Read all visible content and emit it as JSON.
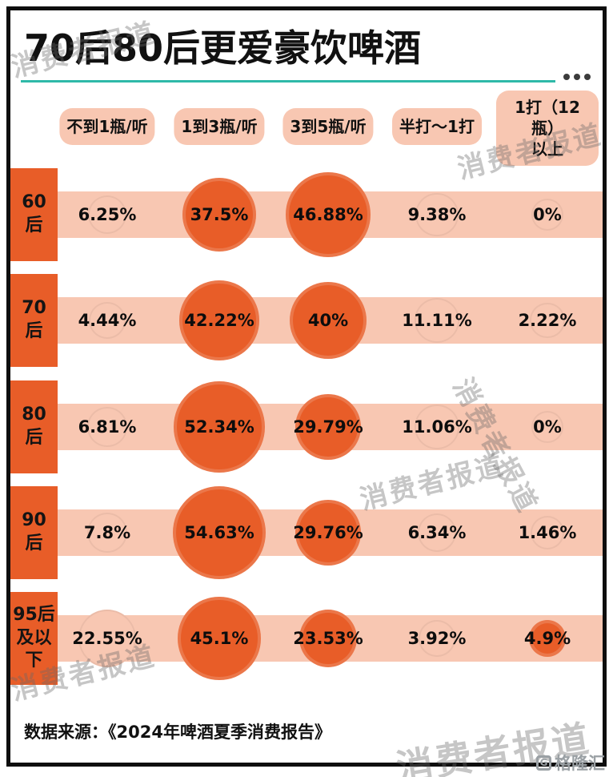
{
  "title": "70后80后更爱豪饮啤酒",
  "watermark": "消费者报道",
  "logo": "格隆汇",
  "logo_icon": "G",
  "source": "数据来源：《2024年啤酒夏季消费报告》",
  "columns": [
    {
      "text": "不到1瓶/听",
      "lines": [
        "不到1瓶/听"
      ]
    },
    {
      "text": "1到3瓶/听",
      "lines": [
        "1到3瓶/听"
      ]
    },
    {
      "text": "3到5瓶/听",
      "lines": [
        "3到5瓶/听"
      ]
    },
    {
      "text": "半打～1打",
      "lines": [
        "半打～1打"
      ]
    },
    {
      "text": "1打（12瓶）以上",
      "lines": [
        "1打（12瓶）",
        "以上"
      ]
    }
  ],
  "row_labels": [
    {
      "text": "60后",
      "lines": [
        "60",
        "后"
      ]
    },
    {
      "text": "70后",
      "lines": [
        "70",
        "后"
      ]
    },
    {
      "text": "80后",
      "lines": [
        "80",
        "后"
      ]
    },
    {
      "text": "90后",
      "lines": [
        "90",
        "后"
      ]
    },
    {
      "text": "95后及以下",
      "lines": [
        "95后",
        "及以",
        "下"
      ]
    }
  ],
  "highlight_dark": [
    [
      false,
      true,
      true,
      false,
      false
    ],
    [
      false,
      true,
      true,
      false,
      false
    ],
    [
      false,
      true,
      true,
      false,
      false
    ],
    [
      false,
      true,
      true,
      false,
      false
    ],
    [
      false,
      true,
      true,
      false,
      true
    ]
  ],
  "colors": {
    "orange": "#E85D28",
    "salmon": "#F8C7B2",
    "teal": "#2FB9A8",
    "ink": "#111111"
  },
  "chart_data": {
    "type": "heatmap",
    "title": "70后80后更爱豪饮啤酒",
    "encoding": "bubble size proportional to percentage; dark orange bubbles mark the largest shares per generation",
    "categories": [
      "不到1瓶/听",
      "1到3瓶/听",
      "3到5瓶/听",
      "半打～1打",
      "1打（12瓶）以上"
    ],
    "unit": "%",
    "series": [
      {
        "name": "60后",
        "values": [
          6.25,
          37.5,
          46.88,
          9.38,
          0
        ]
      },
      {
        "name": "70后",
        "values": [
          4.44,
          42.22,
          40,
          11.11,
          2.22
        ]
      },
      {
        "name": "80后",
        "values": [
          6.81,
          52.34,
          29.79,
          11.06,
          0
        ]
      },
      {
        "name": "90后",
        "values": [
          7.8,
          54.63,
          29.76,
          6.34,
          1.46
        ]
      },
      {
        "name": "95后及以下",
        "values": [
          22.55,
          45.1,
          23.53,
          3.92,
          4.9
        ]
      }
    ],
    "legend_position": "none",
    "source": "《2024年啤酒夏季消费报告》"
  }
}
